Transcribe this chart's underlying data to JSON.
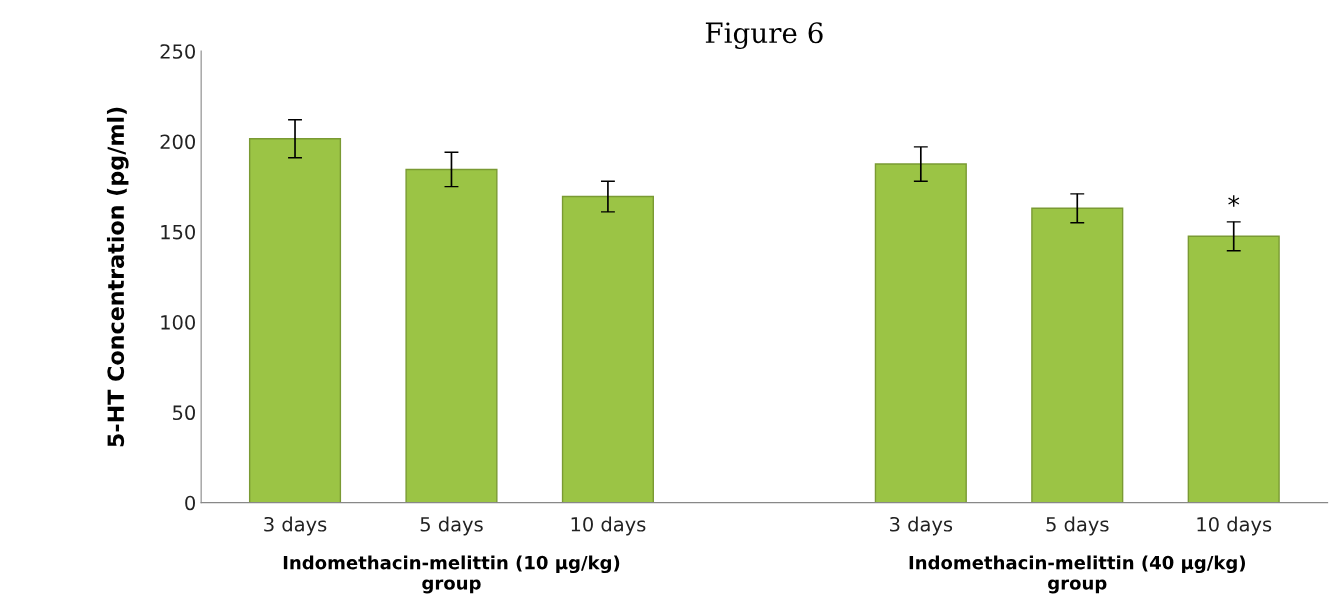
{
  "chart_data": {
    "type": "bar",
    "title": "Figure 6",
    "ylabel": "5-HT Concentration (pg/ml)",
    "categories": [
      "3 days",
      "5 days",
      "10 days",
      null,
      "3 days",
      "5 days",
      "10 days"
    ],
    "values": [
      201.5,
      184.5,
      169.5,
      null,
      187.5,
      163,
      147.5
    ],
    "errors": [
      10.5,
      9.5,
      8.5,
      null,
      9.5,
      8,
      8
    ],
    "color": "#9bc445",
    "ylim": [
      0,
      250
    ],
    "yticks": [
      0,
      50,
      100,
      150,
      200,
      250
    ],
    "grid": false,
    "annotations": [
      "*",
      "Indomethacin-melittin (10 µg/kg)\ngroup",
      "Indomethacin-melittin (40 µg/kg)\ngroup"
    ]
  }
}
